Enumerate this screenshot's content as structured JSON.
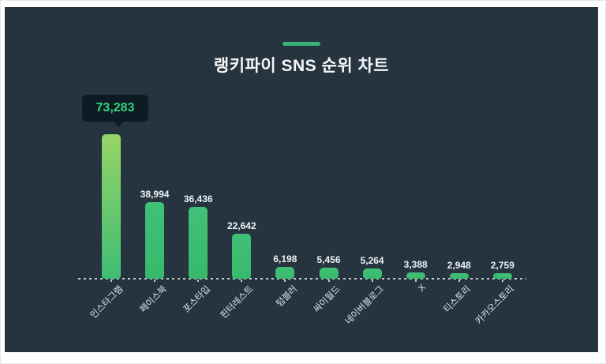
{
  "header": {
    "title": "랭키파이 SNS 순위 차트",
    "accent_color": "#3bb173"
  },
  "tooltip": {
    "value": "73,283",
    "bg": "#0e1b25",
    "text_color": "#2fd37e"
  },
  "chart_data": {
    "type": "bar",
    "title": "랭키파이 SNS 순위 차트",
    "categories": [
      "인스타그램",
      "페이스북",
      "포스타입",
      "핀터레스트",
      "텀블러",
      "싸이월드",
      "네이버블로그",
      "X",
      "티스토리",
      "카카오스토리"
    ],
    "values": [
      73283,
      38994,
      36436,
      22642,
      6198,
      5456,
      5264,
      3388,
      2948,
      2759
    ],
    "value_labels": [
      "73,283",
      "38,994",
      "36,436",
      "22,642",
      "6,198",
      "5,456",
      "5,264",
      "3,388",
      "2,948",
      "2,759"
    ],
    "xlabel": "",
    "ylabel": "",
    "ylim": [
      0,
      76000
    ],
    "grid": false,
    "legend": null,
    "axis_style": "dashed",
    "highlighted_index": 0,
    "bar_color_top": "#41c077",
    "bar_color_bottom": "#38b96c",
    "highlight_gradient_top": "#97d465",
    "highlight_gradient_bottom": "#3ebd75",
    "background_color": "#263440",
    "label_color": "#e2e6e8",
    "value_label_color": "#eef1f3"
  }
}
